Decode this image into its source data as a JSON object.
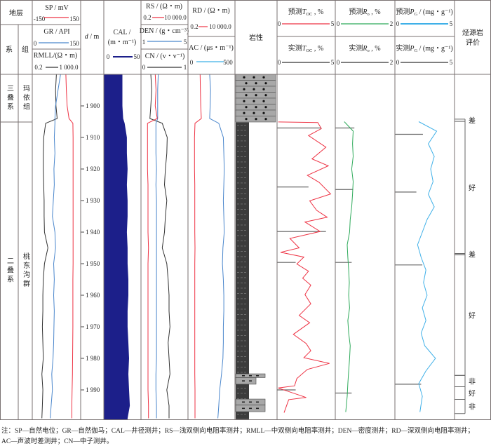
{
  "header": {
    "strata": "地层",
    "system": "系",
    "formation": "组",
    "sp": {
      "label": "SP / mV",
      "min": "-150",
      "max": "150",
      "color": "#ee3344"
    },
    "gr": {
      "label": "GR / API",
      "min": "0",
      "max": "150",
      "color": "#4a86cc"
    },
    "rmll": {
      "label": "RMLL/(Ω・m)",
      "min": "0.2",
      "max": "1 000.0",
      "color": "#333333"
    },
    "depth": {
      "d": "d",
      "unit": " / m"
    },
    "cal": {
      "label1": "CAL /",
      "label2": "(m・m⁻¹)",
      "min": "0",
      "max": "50",
      "color": "#1c1f8a"
    },
    "rs": {
      "label": "RS / (Ω・m)",
      "min": "0.2",
      "max": "10 000.0",
      "color": "#ee3344"
    },
    "den": {
      "label": "DEN / (g・cm⁻³)",
      "min": "1",
      "max": "5",
      "color": "#4a86cc"
    },
    "cn": {
      "label": "CN / (v・v⁻¹)",
      "min": "0",
      "max": "1",
      "color": "#333333"
    },
    "rd": {
      "label": "RD / (Ω・m)",
      "min": "0.2",
      "max": "10 000.0",
      "color": "#ee3344"
    },
    "ac": {
      "label": "AC / (μs・m⁻¹)",
      "min": "0",
      "max": "500",
      "color": "#3fb0e8"
    },
    "lithology": "岩性",
    "toc_pred": {
      "pre": "预测",
      "sym": "T",
      "sub": "OC",
      "post": " , %",
      "min": "0",
      "max": "5",
      "color": "#ee3344"
    },
    "toc_meas": {
      "pre": "实测",
      "sym": "T",
      "sub": "OC",
      "post": " , %",
      "min": "0",
      "max": "5",
      "color": "#333333"
    },
    "ro_pred": {
      "pre": "预测",
      "sym": "R",
      "sub": "o",
      "post": " , %",
      "min": "0",
      "max": "2",
      "color": "#2eaa5a"
    },
    "ro_meas": {
      "pre": "实测",
      "sym": "R",
      "sub": "o",
      "post": " , %",
      "min": "0",
      "max": "2",
      "color": "#333333"
    },
    "pg_pred": {
      "pre": "预测",
      "sym": "P",
      "sub": "G",
      "post": " / (mg・g⁻¹)",
      "min": "0",
      "max": "5",
      "color": "#3fb0e8"
    },
    "pg_meas": {
      "pre": "实测",
      "sym": "P",
      "sub": "G",
      "post": " / (mg・g⁻¹)",
      "min": "0",
      "max": "5",
      "color": "#333333"
    },
    "evaluation1": "烃源岩",
    "evaluation2": "评价"
  },
  "strata": [
    {
      "system": "三叠系",
      "formation": "玛依组",
      "top": 1890,
      "bottom": 1905.2
    },
    {
      "system": "二叠系",
      "formation": "桃东沟群",
      "top": 1905.2,
      "bottom": 1999.3
    }
  ],
  "chart_data": {
    "type": "line",
    "ylabel": "d / m",
    "ylim": [
      1890,
      1999.3
    ],
    "depth_ticks": [
      "1 900",
      "1 910",
      "1 920",
      "1 930",
      "1 940",
      "1 950",
      "1 960",
      "1 970",
      "1 980",
      "1 990"
    ],
    "depth_tick_values": [
      1900,
      1910,
      1920,
      1930,
      1940,
      1950,
      1960,
      1970,
      1980,
      1990
    ],
    "log_depths": [
      1890,
      1895,
      1900,
      1904,
      1905.5,
      1910,
      1915,
      1920,
      1925,
      1930,
      1935,
      1940,
      1945,
      1950,
      1955,
      1960,
      1965,
      1970,
      1975,
      1980,
      1985,
      1990,
      1995,
      1999
    ],
    "logs": {
      "SP": [
        60,
        63,
        68,
        80,
        105,
        106,
        106,
        106,
        106,
        106,
        106,
        106,
        106,
        106,
        105,
        105,
        105,
        105,
        104,
        103,
        102,
        100,
        98,
        98
      ],
      "GR": [
        88,
        80,
        72,
        70,
        70,
        68,
        70,
        67,
        68,
        65,
        62,
        70,
        72,
        66,
        68,
        66,
        68,
        67,
        66,
        64,
        60,
        62,
        58,
        55
      ],
      "RMLL": [
        14,
        12,
        13,
        16,
        2,
        1.4,
        1.3,
        1.3,
        1.4,
        1.5,
        1.5,
        1.6,
        3,
        1.6,
        1.3,
        1.2,
        1.2,
        1.1,
        1.2,
        1.3,
        1.0,
        1.2,
        1.1,
        1.0
      ],
      "CAL": [
        25,
        25,
        25,
        26,
        28,
        31,
        31,
        32,
        31,
        32,
        32,
        31,
        32,
        32,
        33,
        33,
        32,
        32,
        33,
        34,
        33,
        34,
        35,
        32
      ],
      "RS": [
        5,
        6,
        5,
        8,
        0.8,
        0.8,
        0.8,
        0.8,
        0.9,
        0.9,
        0.9,
        0.9,
        1.0,
        0.9,
        0.9,
        0.9,
        0.9,
        0.9,
        0.9,
        0.9,
        0.9,
        0.9,
        1.0,
        1.0
      ],
      "DEN": [
        2.45,
        2.4,
        2.4,
        2.4,
        2.25,
        2.25,
        2.25,
        2.3,
        2.25,
        2.3,
        2.3,
        2.3,
        2.3,
        2.3,
        2.3,
        2.3,
        2.3,
        2.3,
        2.3,
        2.3,
        2.25,
        2.25,
        2.3,
        2.3
      ],
      "CN": [
        0.2,
        0.22,
        0.2,
        0.18,
        0.45,
        0.56,
        0.55,
        0.52,
        0.5,
        0.55,
        0.52,
        0.5,
        0.45,
        0.55,
        0.58,
        0.6,
        0.6,
        0.62,
        0.58,
        0.6,
        0.62,
        0.55,
        0.6,
        0.6
      ],
      "RD": [
        3,
        3.2,
        3.5,
        4,
        0.9,
        0.8,
        0.8,
        0.8,
        0.85,
        0.85,
        0.85,
        0.85,
        0.9,
        0.85,
        0.85,
        0.85,
        0.85,
        0.85,
        0.85,
        0.85,
        0.85,
        0.9,
        0.9,
        0.9
      ],
      "AC": [
        230,
        240,
        235,
        230,
        330,
        380,
        385,
        390,
        385,
        380,
        385,
        390,
        375,
        370,
        380,
        385,
        385,
        380,
        380,
        375,
        360,
        340,
        330,
        320
      ]
    },
    "toc_pred": {
      "depth": [
        1905.1,
        1905.3,
        1907.2,
        1909.4,
        1913.1,
        1916.8,
        1919.0,
        1922.0,
        1924.2,
        1927.9,
        1930.1,
        1933.1,
        1935.3,
        1936.8,
        1939.8,
        1942.0,
        1945.0,
        1946.4,
        1947.9,
        1950.1,
        1952.4,
        1954.6,
        1956.8,
        1959.8,
        1962.7,
        1966.4,
        1968.7,
        1972.4,
        1975.3,
        1977.6,
        1979.8,
        1981.6,
        1983.5,
        1986.4,
        1988.7,
        1989.4,
        1992.4,
        1993.1,
        1997.2
      ],
      "value": [
        0.1,
        3.5,
        3.8,
        2.7,
        4.2,
        3.0,
        4.4,
        2.6,
        3.6,
        4.6,
        2.8,
        3.4,
        4.3,
        2.4,
        3.7,
        1.1,
        1.9,
        0.3,
        2.3,
        1.7,
        2.7,
        2.2,
        2.9,
        2.4,
        2.9,
        1.9,
        2.8,
        1.4,
        2.5,
        2.9,
        2.3,
        4.5,
        2.6,
        1.7,
        1.5,
        0.1,
        2.5,
        1.0,
        0.6
      ]
    },
    "toc_meas": {
      "depth": [
        1907.0,
        1925.7,
        1939.8,
        1949.6,
        1990.0
      ],
      "value": [
        3.8,
        2.7,
        4.2,
        1.6,
        1.6
      ]
    },
    "interp_depths": [
      1905,
      1908,
      1912,
      1916,
      1920,
      1924,
      1928,
      1932,
      1936,
      1940,
      1944,
      1948,
      1952,
      1956,
      1960,
      1964,
      1968,
      1972,
      1976,
      1980,
      1984,
      1988,
      1992,
      1997
    ],
    "ro_pred": [
      0.3,
      0.6,
      0.58,
      0.6,
      0.55,
      0.6,
      0.58,
      0.55,
      0.5,
      0.48,
      0.4,
      0.42,
      0.45,
      0.47,
      0.45,
      0.48,
      0.42,
      0.45,
      0.5,
      0.48,
      0.45,
      0.42,
      0.4,
      0.35
    ],
    "ro_meas": {
      "depth": [
        1907.0,
        1926.5,
        1949.6,
        1991.0
      ],
      "value": [
        0.64,
        0.6,
        0.55,
        0.55
      ]
    },
    "pg_pred": [
      2.0,
      3.5,
      2.8,
      3.3,
      3.0,
      3.2,
      2.8,
      3.3,
      2.7,
      2.3,
      1.9,
      2.2,
      2.6,
      2.4,
      2.7,
      2.3,
      2.6,
      2.2,
      2.5,
      3.4,
      2.6,
      2.0,
      2.3,
      2.1
    ],
    "pg_meas": {
      "depth": [
        1909.0,
        1927.3,
        1950.4,
        1988.2
      ],
      "value": [
        2.35,
        1.8,
        2.3,
        2.2
      ]
    }
  },
  "lithology": [
    {
      "type": "sandstone",
      "top": 1890,
      "bottom": 1905.2
    },
    {
      "type": "mudstone",
      "top": 1905.2,
      "bottom": 1999.3
    },
    {
      "type": "siltstone",
      "top": 1984.9,
      "bottom": 1986.1
    },
    {
      "type": "siltstone",
      "top": 1986.1,
      "bottom": 1988.2
    },
    {
      "type": "siltstone",
      "top": 1992.9,
      "bottom": 1994.8
    },
    {
      "type": "siltstone",
      "top": 1994.8,
      "bottom": 1996.9
    }
  ],
  "evaluation": [
    {
      "label": "差",
      "top": 1904.2,
      "bottom": 1904.9
    },
    {
      "label": "好",
      "top": 1904.9,
      "bottom": 1946.8
    },
    {
      "label": "差",
      "top": 1946.8,
      "bottom": 1947.2
    },
    {
      "label": "好",
      "top": 1947.2,
      "bottom": 1985.4
    },
    {
      "label": "非",
      "top": 1985.4,
      "bottom": 1989.0
    },
    {
      "label": "好",
      "top": 1989.0,
      "bottom": 1993.0
    },
    {
      "label": "非",
      "top": 1993.0,
      "bottom": 1997.5
    }
  ],
  "notes": {
    "line1": "注：SP—自然电位；GR—自然伽马；CAL—井径测井；RS—浅双侧向电阻率测井；RMLL—中双侧向电阻率测井；DEN—密度测井；RD—深双侧向电阻率测井；",
    "line2": "AC—声波时差测井；CN—中子测井。"
  }
}
